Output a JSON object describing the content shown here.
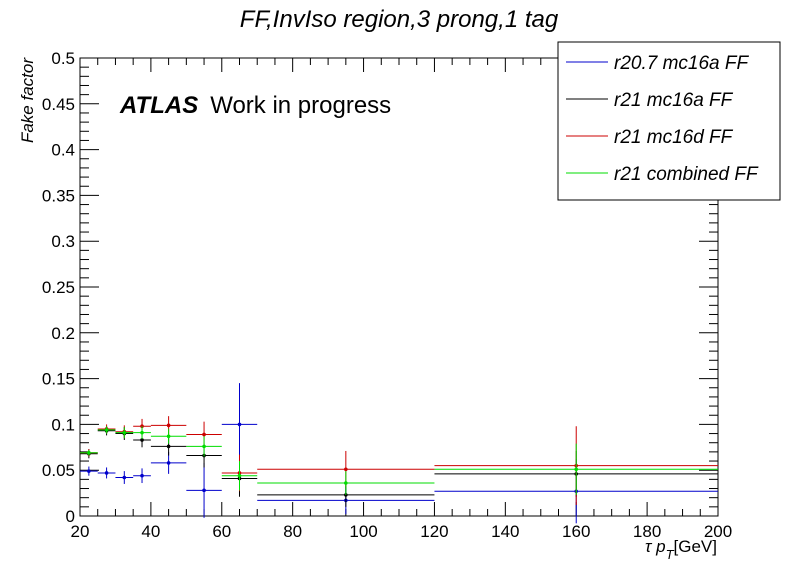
{
  "chart_data": {
    "type": "scatter",
    "title": "FF,InvIso region,3 prong,1 tag",
    "xlabel": "τ p",
    "xlabel_sub": "T",
    "xlabel_unit": "[GeV]",
    "ylabel": "Fake factor",
    "xlim": [
      20,
      200
    ],
    "ylim": [
      0,
      0.5
    ],
    "x_ticks": [
      "20",
      "40",
      "60",
      "80",
      "100",
      "120",
      "140",
      "160",
      "180",
      "200"
    ],
    "y_ticks": [
      "0",
      "0.05",
      "0.1",
      "0.15",
      "0.2",
      "0.25",
      "0.3",
      "0.35",
      "0.4",
      "0.45",
      "0.5"
    ],
    "grid": false,
    "legend_position": "top-right",
    "annotation": {
      "atlas": "ATLAS",
      "label": "Work in progress"
    },
    "bins": [
      [
        20,
        25
      ],
      [
        25,
        30
      ],
      [
        30,
        35
      ],
      [
        35,
        40
      ],
      [
        40,
        50
      ],
      [
        50,
        60
      ],
      [
        60,
        70
      ],
      [
        70,
        120
      ],
      [
        120,
        200
      ]
    ],
    "series": [
      {
        "name": "r20.7 mc16a FF",
        "color": "#0000cc",
        "values": [
          0.049,
          0.047,
          0.042,
          0.044,
          0.058,
          0.028,
          0.1,
          0.017,
          0.027
        ],
        "errors": [
          0.005,
          0.006,
          0.007,
          0.008,
          0.012,
          0.03,
          0.045,
          0.015,
          0.035
        ]
      },
      {
        "name": "r21 mc16a FF",
        "color": "#000000",
        "values": [
          0.068,
          0.093,
          0.09,
          0.083,
          0.076,
          0.066,
          0.041,
          0.023,
          0.046
        ],
        "errors": [
          0.005,
          0.005,
          0.007,
          0.008,
          0.01,
          0.013,
          0.02,
          0.013,
          0.025
        ]
      },
      {
        "name": "r21 mc16d FF",
        "color": "#cc0000",
        "values": [
          0.069,
          0.095,
          0.092,
          0.098,
          0.099,
          0.089,
          0.047,
          0.051,
          0.055
        ],
        "errors": [
          0.004,
          0.005,
          0.007,
          0.008,
          0.01,
          0.014,
          0.02,
          0.02,
          0.043
        ]
      },
      {
        "name": "r21 combined FF",
        "color": "#00dd00",
        "values": [
          0.069,
          0.094,
          0.091,
          0.091,
          0.087,
          0.076,
          0.044,
          0.036,
          0.051
        ],
        "errors": [
          0.003,
          0.004,
          0.006,
          0.007,
          0.008,
          0.011,
          0.016,
          0.013,
          0.028
        ]
      }
    ]
  }
}
